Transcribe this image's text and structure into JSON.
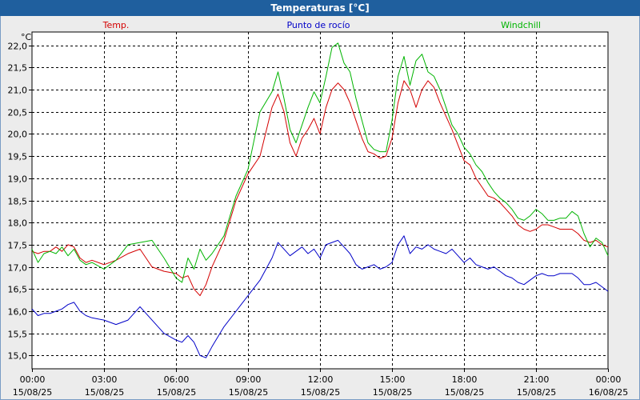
{
  "window": {
    "title": "Temperaturas [°C]"
  },
  "chart_data": {
    "type": "line",
    "title": "Temperaturas [°C]",
    "ylabel": "°C",
    "ylim": [
      14.7,
      22.3
    ],
    "yticks": [
      15.0,
      15.5,
      16.0,
      16.5,
      17.0,
      17.5,
      18.0,
      18.5,
      19.0,
      19.5,
      20.0,
      20.5,
      21.0,
      21.5,
      22.0
    ],
    "ytick_labels": [
      "15,0",
      "15,5",
      "16,0",
      "16,5",
      "17,0",
      "17,5",
      "18,0",
      "18,5",
      "19,0",
      "19,5",
      "20,0",
      "20,5",
      "21,0",
      "21,5",
      "22,0"
    ],
    "xlim": [
      0,
      24
    ],
    "xticks": [
      0,
      3,
      6,
      9,
      12,
      15,
      18,
      21,
      24
    ],
    "xtick_times": [
      "00:00",
      "03:00",
      "06:00",
      "09:00",
      "12:00",
      "15:00",
      "18:00",
      "21:00",
      "00:00"
    ],
    "xtick_dates": [
      "15/08/25",
      "15/08/25",
      "15/08/25",
      "15/08/25",
      "15/08/25",
      "15/08/25",
      "15/08/25",
      "15/08/25",
      "16/08/25"
    ],
    "grid": true,
    "legend_position": "top",
    "series": [
      {
        "name": "Temp.",
        "color": "#d40000",
        "x": [
          0,
          0.25,
          0.5,
          0.75,
          1,
          1.25,
          1.5,
          1.75,
          2,
          2.25,
          2.5,
          3,
          3.5,
          4,
          4.5,
          5,
          5.5,
          6,
          6.25,
          6.5,
          6.75,
          7,
          7.25,
          7.5,
          8,
          8.5,
          9,
          9.5,
          10,
          10.25,
          10.5,
          10.75,
          11,
          11.25,
          11.5,
          11.75,
          12,
          12.25,
          12.5,
          12.75,
          13,
          13.25,
          13.5,
          13.75,
          14,
          14.25,
          14.5,
          14.75,
          15,
          15.25,
          15.5,
          15.75,
          16,
          16.25,
          16.5,
          16.75,
          17,
          17.25,
          17.5,
          17.75,
          18,
          18.25,
          18.5,
          18.75,
          19,
          19.25,
          19.5,
          19.75,
          20,
          20.25,
          20.5,
          20.75,
          21,
          21.25,
          21.5,
          21.75,
          22,
          22.25,
          22.5,
          22.75,
          23,
          23.25,
          23.5,
          23.75,
          24
        ],
        "y": [
          17.35,
          17.3,
          17.35,
          17.35,
          17.45,
          17.35,
          17.5,
          17.45,
          17.2,
          17.1,
          17.15,
          17.05,
          17.15,
          17.3,
          17.4,
          17.0,
          16.9,
          16.85,
          16.75,
          16.8,
          16.5,
          16.35,
          16.6,
          17.0,
          17.6,
          18.5,
          19.1,
          19.5,
          20.6,
          20.9,
          20.5,
          19.8,
          19.5,
          19.9,
          20.1,
          20.35,
          20.0,
          20.6,
          21.0,
          21.15,
          21.0,
          20.7,
          20.3,
          19.9,
          19.6,
          19.55,
          19.45,
          19.5,
          19.9,
          20.7,
          21.2,
          21.0,
          20.6,
          21.0,
          21.2,
          21.05,
          20.7,
          20.4,
          20.1,
          19.75,
          19.4,
          19.3,
          19.0,
          18.8,
          18.6,
          18.55,
          18.45,
          18.3,
          18.15,
          17.95,
          17.85,
          17.8,
          17.85,
          17.95,
          17.95,
          17.9,
          17.85,
          17.85,
          17.85,
          17.75,
          17.6,
          17.55,
          17.6,
          17.5,
          17.45
        ]
      },
      {
        "name": "Punto de rocío",
        "color": "#0000c8",
        "x": [
          0,
          0.25,
          0.5,
          0.75,
          1,
          1.25,
          1.5,
          1.75,
          2,
          2.25,
          2.5,
          3,
          3.5,
          4,
          4.5,
          5,
          5.5,
          6,
          6.25,
          6.5,
          6.75,
          7,
          7.25,
          7.5,
          8,
          8.5,
          9,
          9.5,
          10,
          10.25,
          10.5,
          10.75,
          11,
          11.25,
          11.5,
          11.75,
          12,
          12.25,
          12.5,
          12.75,
          13,
          13.25,
          13.5,
          13.75,
          14,
          14.25,
          14.5,
          14.75,
          15,
          15.25,
          15.5,
          15.75,
          16,
          16.25,
          16.5,
          16.75,
          17,
          17.25,
          17.5,
          17.75,
          18,
          18.25,
          18.5,
          18.75,
          19,
          19.25,
          19.5,
          19.75,
          20,
          20.25,
          20.5,
          20.75,
          21,
          21.25,
          21.5,
          21.75,
          22,
          22.25,
          22.5,
          22.75,
          23,
          23.25,
          23.5,
          23.75,
          24
        ],
        "y": [
          16.05,
          15.9,
          15.95,
          15.95,
          16.0,
          16.05,
          16.15,
          16.2,
          16.0,
          15.9,
          15.85,
          15.8,
          15.7,
          15.8,
          16.1,
          15.8,
          15.5,
          15.35,
          15.3,
          15.45,
          15.3,
          15.0,
          14.95,
          15.2,
          15.65,
          16.0,
          16.35,
          16.7,
          17.2,
          17.55,
          17.4,
          17.25,
          17.35,
          17.45,
          17.3,
          17.4,
          17.2,
          17.5,
          17.55,
          17.6,
          17.45,
          17.3,
          17.05,
          16.95,
          17.0,
          17.05,
          16.95,
          17.0,
          17.1,
          17.5,
          17.7,
          17.3,
          17.45,
          17.4,
          17.5,
          17.4,
          17.35,
          17.3,
          17.4,
          17.25,
          17.1,
          17.2,
          17.05,
          17.0,
          16.95,
          17.0,
          16.9,
          16.8,
          16.75,
          16.65,
          16.6,
          16.7,
          16.8,
          16.85,
          16.8,
          16.8,
          16.85,
          16.85,
          16.85,
          16.75,
          16.6,
          16.6,
          16.65,
          16.55,
          16.45
        ]
      },
      {
        "name": "Windchill",
        "color": "#00b400",
        "x": [
          0,
          0.25,
          0.5,
          0.75,
          1,
          1.25,
          1.5,
          1.75,
          2,
          2.25,
          2.5,
          3,
          3.5,
          4,
          4.5,
          5,
          5.5,
          6,
          6.25,
          6.5,
          6.75,
          7,
          7.25,
          7.5,
          8,
          8.5,
          9,
          9.5,
          10,
          10.25,
          10.5,
          10.75,
          11,
          11.25,
          11.5,
          11.75,
          12,
          12.25,
          12.5,
          12.75,
          13,
          13.25,
          13.5,
          13.75,
          14,
          14.25,
          14.5,
          14.75,
          15,
          15.25,
          15.5,
          15.75,
          16,
          16.25,
          16.5,
          16.75,
          17,
          17.25,
          17.5,
          17.75,
          18,
          18.25,
          18.5,
          18.75,
          19,
          19.25,
          19.5,
          19.75,
          20,
          20.25,
          20.5,
          20.75,
          21,
          21.25,
          21.5,
          21.75,
          22,
          22.25,
          22.5,
          22.75,
          23,
          23.25,
          23.5,
          23.75,
          24
        ],
        "y": [
          17.4,
          17.1,
          17.3,
          17.35,
          17.3,
          17.45,
          17.25,
          17.4,
          17.15,
          17.05,
          17.1,
          16.95,
          17.15,
          17.5,
          17.55,
          17.6,
          17.2,
          16.75,
          16.65,
          17.2,
          16.95,
          17.4,
          17.15,
          17.3,
          17.7,
          18.6,
          19.2,
          20.5,
          20.95,
          21.4,
          20.8,
          20.1,
          19.8,
          20.2,
          20.6,
          20.95,
          20.7,
          21.3,
          21.95,
          22.05,
          21.6,
          21.4,
          20.8,
          20.3,
          19.8,
          19.65,
          19.6,
          19.6,
          20.3,
          21.3,
          21.75,
          21.1,
          21.65,
          21.8,
          21.4,
          21.3,
          21.0,
          20.6,
          20.2,
          20.0,
          19.7,
          19.55,
          19.3,
          19.15,
          18.9,
          18.7,
          18.55,
          18.45,
          18.3,
          18.1,
          18.05,
          18.15,
          18.3,
          18.2,
          18.05,
          18.05,
          18.1,
          18.1,
          18.25,
          18.15,
          17.75,
          17.45,
          17.65,
          17.55,
          17.25
        ]
      }
    ]
  }
}
